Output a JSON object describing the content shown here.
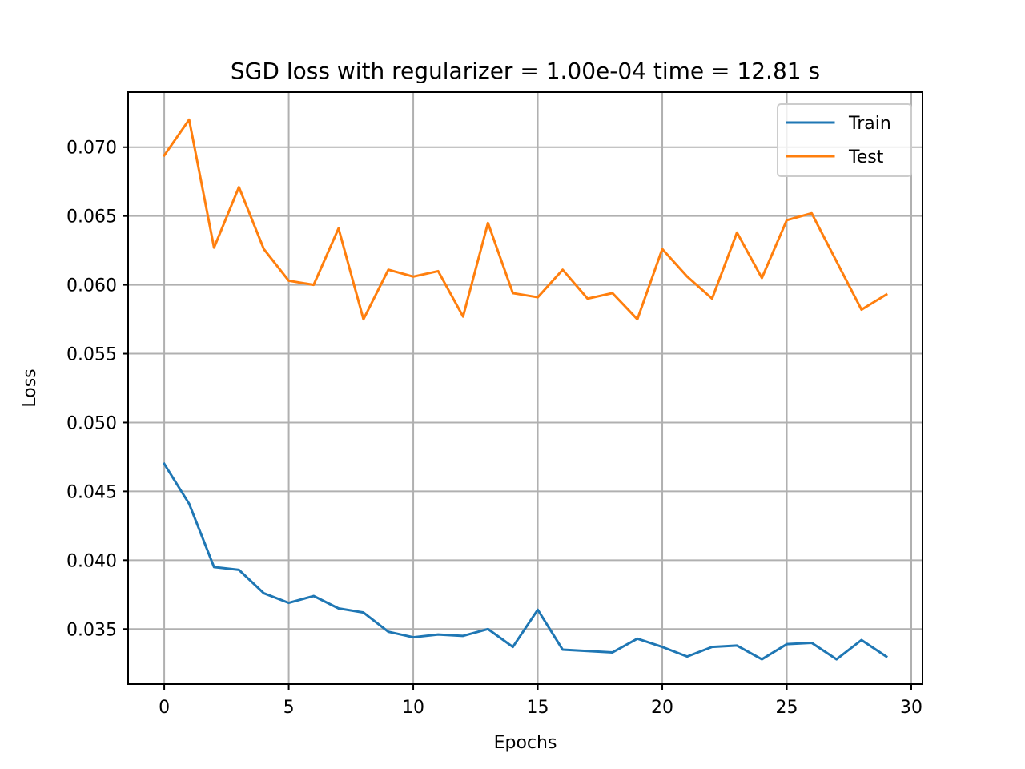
{
  "chart_data": {
    "type": "line",
    "title": "SGD loss with regularizer = 1.00e-04 time = 12.81 s",
    "xlabel": "Epochs",
    "ylabel": "Loss",
    "xlim": [
      -1.45,
      30.45
    ],
    "ylim": [
      0.031,
      0.074
    ],
    "xticks": [
      0,
      5,
      10,
      15,
      20,
      25,
      30
    ],
    "xtick_labels": [
      "0",
      "5",
      "10",
      "15",
      "20",
      "25",
      "30"
    ],
    "yticks": [
      0.035,
      0.04,
      0.045,
      0.05,
      0.055,
      0.06,
      0.065,
      0.07
    ],
    "ytick_labels": [
      "0.035",
      "0.040",
      "0.045",
      "0.050",
      "0.055",
      "0.060",
      "0.065",
      "0.070"
    ],
    "grid": true,
    "legend_position": "top-right",
    "x": [
      0,
      1,
      2,
      3,
      4,
      5,
      6,
      7,
      8,
      9,
      10,
      11,
      12,
      13,
      14,
      15,
      16,
      17,
      18,
      19,
      20,
      21,
      22,
      23,
      24,
      25,
      26,
      27,
      28,
      29
    ],
    "series": [
      {
        "name": "Train",
        "color": "#1f77b4",
        "values": [
          0.047,
          0.0441,
          0.0395,
          0.0393,
          0.0376,
          0.0369,
          0.0374,
          0.0365,
          0.0362,
          0.0348,
          0.0344,
          0.0346,
          0.0345,
          0.035,
          0.0337,
          0.0364,
          0.0335,
          0.0334,
          0.0333,
          0.0343,
          0.0337,
          0.033,
          0.0337,
          0.0338,
          0.0328,
          0.0339,
          0.034,
          0.0328,
          0.0342,
          0.033
        ]
      },
      {
        "name": "Test",
        "color": "#ff7f0e",
        "values": [
          0.0694,
          0.072,
          0.0627,
          0.0671,
          0.0626,
          0.0603,
          0.06,
          0.0641,
          0.0575,
          0.0611,
          0.0606,
          0.061,
          0.0577,
          0.0645,
          0.0594,
          0.0591,
          0.0611,
          0.059,
          0.0594,
          0.0575,
          0.0626,
          0.0606,
          0.059,
          0.0638,
          0.0605,
          0.0647,
          0.0652,
          0.0617,
          0.0582,
          0.0593
        ]
      }
    ]
  }
}
